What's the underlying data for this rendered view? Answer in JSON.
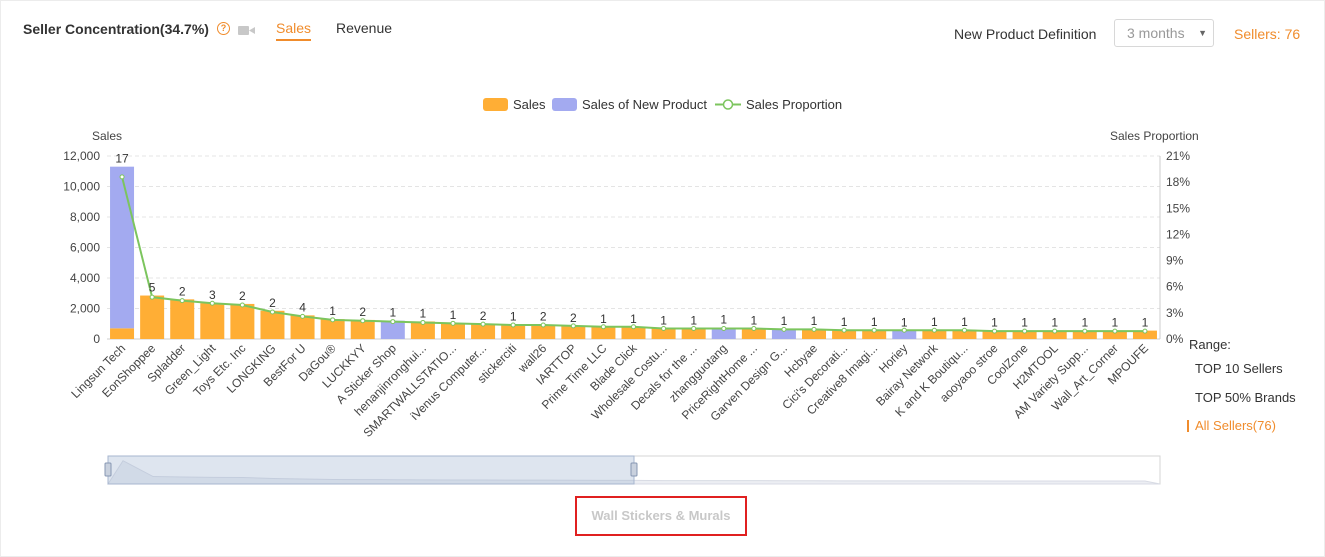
{
  "header": {
    "title": "Seller Concentration(34.7%)",
    "help_glyph": "?",
    "tabs": [
      "Sales",
      "Revenue"
    ],
    "active_tab": "Sales",
    "new_product_label": "New Product Definition",
    "new_product_value": "3 months",
    "sellers_text": "Sellers: 76"
  },
  "colors": {
    "sales": "#ffae35",
    "new_product": "#a3aaf0",
    "proportion": "#7cc55e",
    "accent": "#f08c2c"
  },
  "legend": [
    "Sales",
    "Sales of New Product",
    "Sales Proportion"
  ],
  "range": {
    "label": "Range:",
    "options": [
      "TOP 10 Sellers",
      "TOP 50% Brands",
      "All Sellers(76)"
    ],
    "active": "All Sellers(76)"
  },
  "category": "Wall Stickers & Murals",
  "chart_data": {
    "type": "bar",
    "y_left_label": "Sales",
    "y_right_label": "Sales Proportion",
    "ylim": [
      0,
      12000
    ],
    "y_ticks": [
      "0",
      "2,000",
      "4,000",
      "6,000",
      "8,000",
      "10,000",
      "12,000"
    ],
    "y2lim": [
      0,
      21
    ],
    "y2_ticks": [
      "0%",
      "3%",
      "6%",
      "9%",
      "12%",
      "15%",
      "18%",
      "21%"
    ],
    "grid": true,
    "legend_position": "top-center",
    "categories": [
      "Lingsun Tech",
      "EonShoppee",
      "Spladder",
      "Green_Light",
      "Toys Etc. Inc",
      "LONGKING",
      "BestFor U",
      "DaGou®",
      "LUCKKYY",
      "A Sticker Shop",
      "henanjinronghui...",
      "SMARTWALLSTATIO...",
      "iVenus Computer...",
      "stickerciti",
      "wall26",
      "IARTTOP",
      "Prime Time LLC",
      "Blade Click",
      "Wholesale Costu...",
      "Decals for the ...",
      "zhangguotang",
      "PriceRightHome ...",
      "Garven Design G...",
      "Hcbyae",
      "Cici's Decorati...",
      "Creative8 Imagi...",
      "Horiey",
      "Bairay Network",
      "K and K Boutiqu...",
      "aooyaoo stroe",
      "CoolZone",
      "H2MTOOL",
      "AM Variety Supp...",
      "Wall_Art_Corner",
      "MPOUFE"
    ],
    "series": [
      {
        "name": "Sales",
        "values": [
          700,
          2850,
          2600,
          2350,
          2300,
          1850,
          1550,
          1300,
          1250,
          0,
          1150,
          1050,
          1000,
          950,
          950,
          850,
          800,
          800,
          700,
          700,
          0,
          700,
          0,
          650,
          600,
          600,
          0,
          600,
          600,
          550,
          550,
          550,
          550,
          550,
          550
        ]
      },
      {
        "name": "Sales of New Product",
        "values": [
          10600,
          0,
          0,
          0,
          0,
          0,
          0,
          0,
          0,
          1200,
          0,
          0,
          0,
          0,
          0,
          0,
          0,
          0,
          0,
          0,
          750,
          0,
          650,
          0,
          0,
          0,
          550,
          0,
          0,
          0,
          0,
          0,
          0,
          0,
          0
        ]
      },
      {
        "name": "Sales Proportion",
        "values": [
          18.6,
          4.8,
          4.4,
          4.1,
          3.9,
          3.1,
          2.6,
          2.2,
          2.1,
          2.0,
          1.9,
          1.8,
          1.7,
          1.6,
          1.6,
          1.5,
          1.4,
          1.4,
          1.2,
          1.2,
          1.2,
          1.2,
          1.1,
          1.1,
          1.0,
          1.0,
          1.0,
          1.0,
          1.0,
          0.9,
          0.9,
          0.9,
          0.9,
          0.9,
          0.9
        ]
      }
    ],
    "data_labels": [
      "17",
      "5",
      "2",
      "3",
      "2",
      "2",
      "4",
      "1",
      "2",
      "1",
      "1",
      "1",
      "2",
      "1",
      "2",
      "2",
      "1",
      "1",
      "1",
      "1",
      "1",
      "1",
      "1",
      "1",
      "1",
      "1",
      "1",
      "1",
      "1",
      "1",
      "1",
      "1",
      "1",
      "1",
      "1"
    ]
  }
}
